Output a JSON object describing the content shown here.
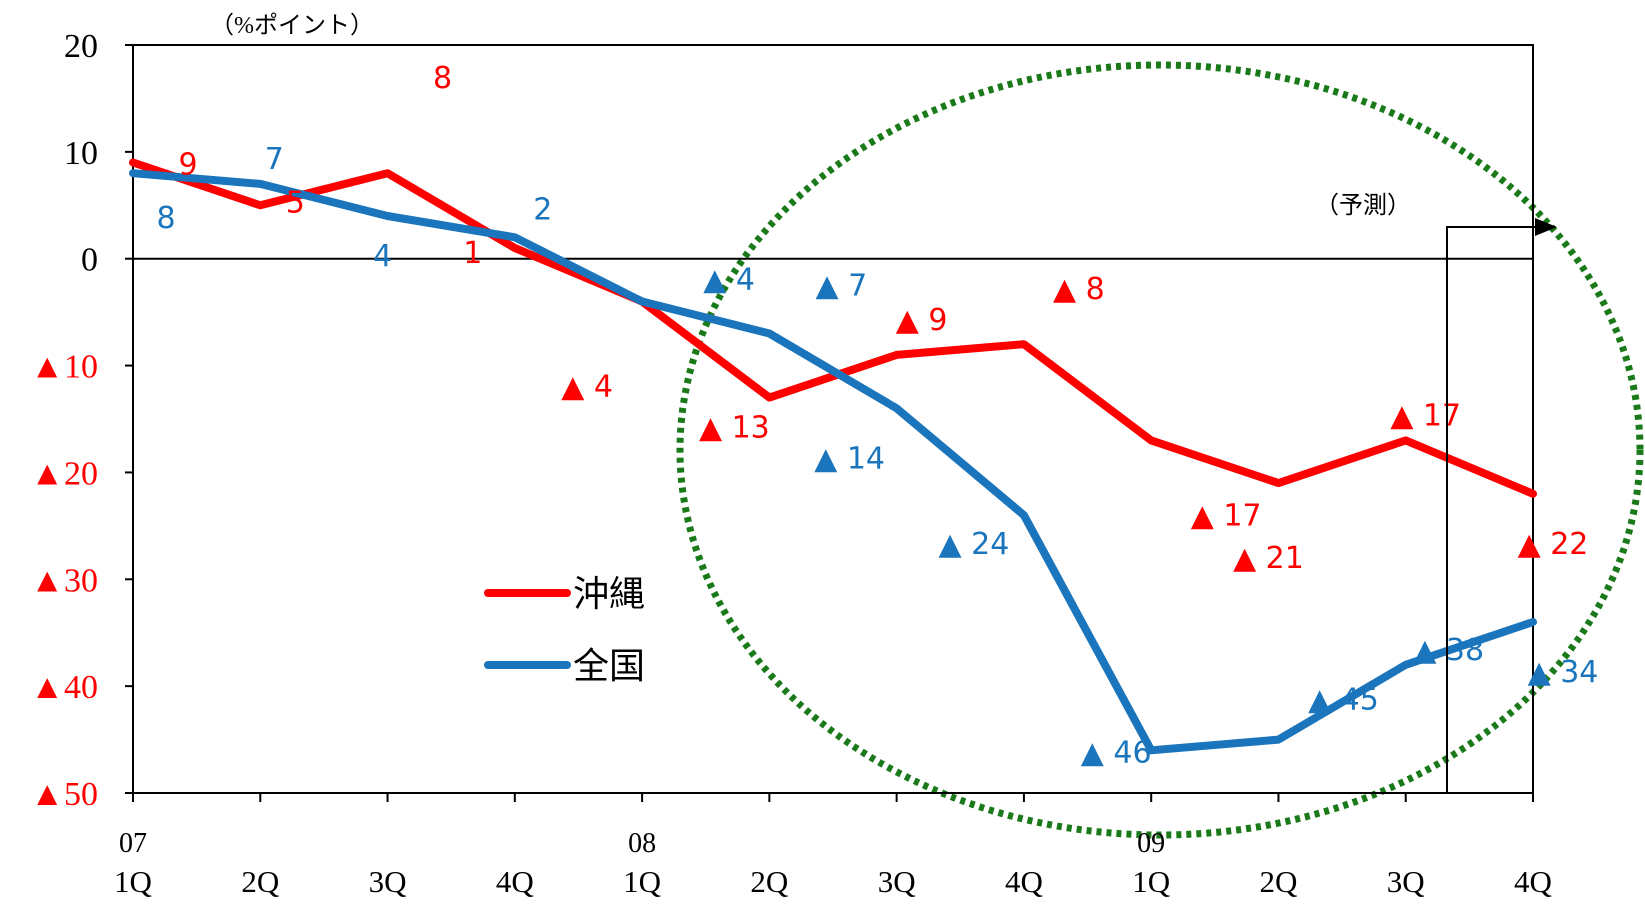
{
  "chart_data": {
    "type": "line",
    "unit_label": "（%ポイント）",
    "forecast_label": "（予測）",
    "x": [
      {
        "quarter": "1Q",
        "year": "07"
      },
      {
        "quarter": "2Q",
        "year": ""
      },
      {
        "quarter": "3Q",
        "year": ""
      },
      {
        "quarter": "4Q",
        "year": ""
      },
      {
        "quarter": "1Q",
        "year": "08"
      },
      {
        "quarter": "2Q",
        "year": ""
      },
      {
        "quarter": "3Q",
        "year": ""
      },
      {
        "quarter": "4Q",
        "year": ""
      },
      {
        "quarter": "1Q",
        "year": "09"
      },
      {
        "quarter": "2Q",
        "year": ""
      },
      {
        "quarter": "3Q",
        "year": ""
      },
      {
        "quarter": "4Q",
        "year": ""
      }
    ],
    "ylim": [
      -50,
      20
    ],
    "yticks": [
      {
        "value": 20,
        "label": "20"
      },
      {
        "value": 10,
        "label": "10"
      },
      {
        "value": 0,
        "label": "0"
      },
      {
        "value": -10,
        "label": "▲10"
      },
      {
        "value": -20,
        "label": "▲20"
      },
      {
        "value": -30,
        "label": "▲30"
      },
      {
        "value": -40,
        "label": "▲40"
      },
      {
        "value": -50,
        "label": "▲50"
      }
    ],
    "series": [
      {
        "name": "沖縄",
        "color": "#ff0000",
        "values": [
          9,
          5,
          8,
          1,
          -4,
          -13,
          -9,
          -8,
          -17,
          -21,
          -17,
          -22
        ],
        "labels": [
          "9",
          "5",
          "8",
          "1",
          "▲ 4",
          "▲ 13",
          "▲ 9",
          "▲ 8",
          "▲ 17",
          "▲ 21",
          "▲ 17",
          "▲ 22"
        ]
      },
      {
        "name": "全国",
        "color": "#1a75bc",
        "values": [
          8,
          7,
          4,
          2,
          -4,
          -7,
          -14,
          -24,
          -46,
          -45,
          -38,
          -34
        ],
        "labels": [
          "8",
          "7",
          "4",
          "2",
          "▲ 4",
          "▲ 7",
          "▲ 14",
          "▲ 24",
          "▲ 46",
          "▲ 45",
          "▲ 38",
          "▲ 34"
        ]
      }
    ],
    "grid": false,
    "legend_position": "lower-left",
    "highlight_ellipse_color": "#1a7a1a"
  }
}
